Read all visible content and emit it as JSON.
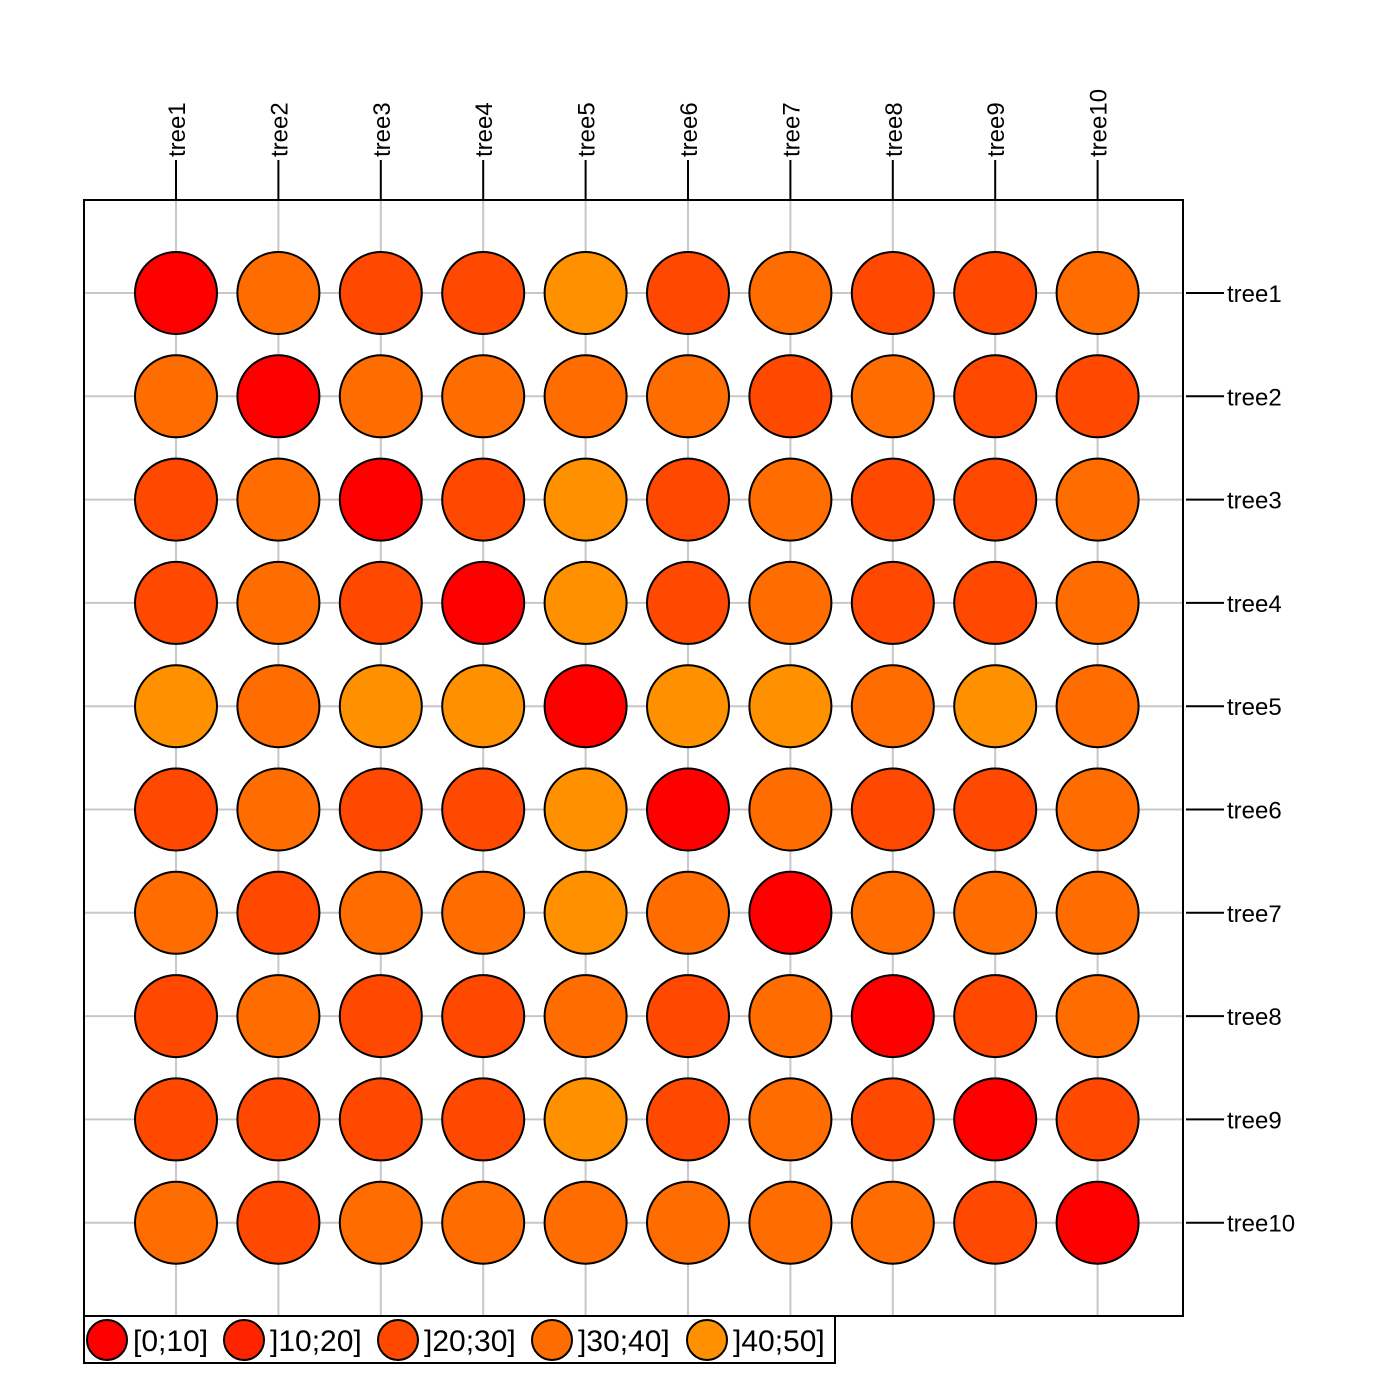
{
  "chart_data": {
    "type": "heatmap",
    "title": "",
    "xlabel": "",
    "ylabel": "",
    "grid": true,
    "legend_position": "bottom-left",
    "categories_x": [
      "tree1",
      "tree2",
      "tree3",
      "tree4",
      "tree5",
      "tree6",
      "tree7",
      "tree8",
      "tree9",
      "tree10"
    ],
    "categories_y": [
      "tree1",
      "tree2",
      "tree3",
      "tree4",
      "tree5",
      "tree6",
      "tree7",
      "tree8",
      "tree9",
      "tree10"
    ],
    "bins": [
      {
        "label": "[0;10]",
        "color": "#FF0000"
      },
      {
        "label": "]10;20]",
        "color": "#FF2400"
      },
      {
        "label": "]20;30]",
        "color": "#FF4800"
      },
      {
        "label": "]30;40]",
        "color": "#FF6D00"
      },
      {
        "label": "]40;50]",
        "color": "#FF9100"
      }
    ],
    "matrix_bin_index": [
      [
        0,
        3,
        2,
        2,
        4,
        2,
        3,
        2,
        2,
        3
      ],
      [
        3,
        0,
        3,
        3,
        3,
        3,
        2,
        3,
        2,
        2
      ],
      [
        2,
        3,
        0,
        2,
        4,
        2,
        3,
        2,
        2,
        3
      ],
      [
        2,
        3,
        2,
        0,
        4,
        2,
        3,
        2,
        2,
        3
      ],
      [
        4,
        3,
        4,
        4,
        0,
        4,
        4,
        3,
        4,
        3
      ],
      [
        2,
        3,
        2,
        2,
        4,
        0,
        3,
        2,
        2,
        3
      ],
      [
        3,
        2,
        3,
        3,
        4,
        3,
        0,
        3,
        3,
        3
      ],
      [
        2,
        3,
        2,
        2,
        3,
        2,
        3,
        0,
        2,
        3
      ],
      [
        2,
        2,
        2,
        2,
        4,
        2,
        3,
        2,
        0,
        2
      ],
      [
        3,
        2,
        3,
        3,
        3,
        3,
        3,
        3,
        2,
        0
      ]
    ]
  }
}
